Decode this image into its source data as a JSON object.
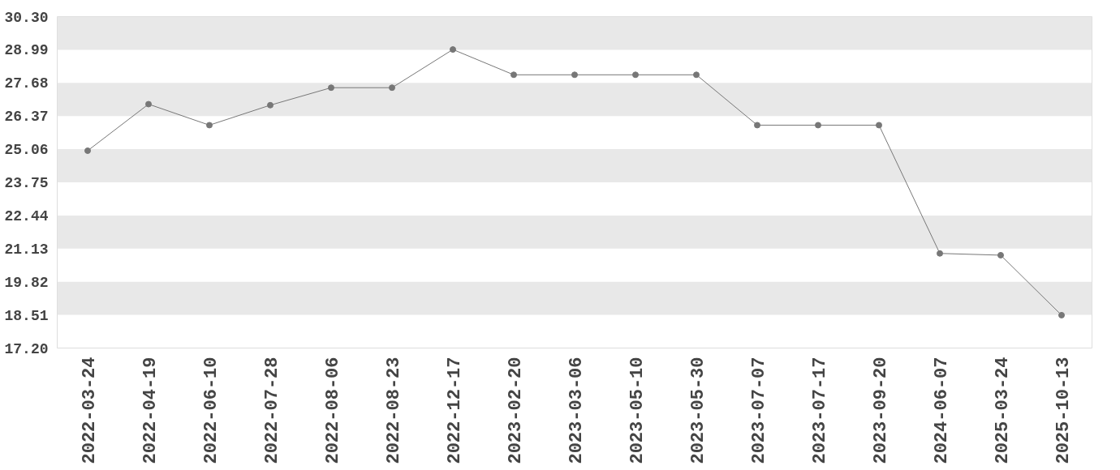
{
  "chart_data": {
    "type": "line",
    "categories": [
      "2022-03-24",
      "2022-04-19",
      "2022-06-10",
      "2022-07-28",
      "2022-08-06",
      "2022-08-23",
      "2022-12-17",
      "2023-02-20",
      "2023-03-06",
      "2023-05-10",
      "2023-05-30",
      "2023-07-07",
      "2023-07-17",
      "2023-09-20",
      "2024-06-07",
      "2025-03-24",
      "2025-10-13"
    ],
    "series": [
      {
        "color": "#777777",
        "values": [
          25.0,
          26.84,
          26.01,
          26.8,
          27.49,
          27.49,
          29.0,
          28.0,
          28.0,
          28.0,
          28.0,
          26.01,
          26.01,
          26.01,
          20.94,
          20.87,
          18.5
        ]
      }
    ],
    "ylim": [
      17.2,
      30.3
    ],
    "yticks": [
      {
        "value": 17.2,
        "label": "17.20"
      },
      {
        "value": 18.51,
        "label": "18.51"
      },
      {
        "value": 19.82,
        "label": "19.82"
      },
      {
        "value": 21.13,
        "label": "21.13"
      },
      {
        "value": 22.44,
        "label": "22.44"
      },
      {
        "value": 23.75,
        "label": "23.75"
      },
      {
        "value": 25.06,
        "label": "25.06"
      },
      {
        "value": 26.37,
        "label": "26.37"
      },
      {
        "value": 27.68,
        "label": "27.68"
      },
      {
        "value": 28.99,
        "label": "28.99"
      },
      {
        "value": 30.3,
        "label": "30.30"
      }
    ],
    "bands": [
      {
        "axis": "y",
        "from": 18.51,
        "to": 19.82,
        "color": "#e8e8e8"
      },
      {
        "axis": "y",
        "from": 21.13,
        "to": 22.44,
        "color": "#e8e8e8"
      },
      {
        "axis": "y",
        "from": 23.75,
        "to": 25.06,
        "color": "#e8e8e8"
      },
      {
        "axis": "y",
        "from": 26.37,
        "to": 27.68,
        "color": "#e8e8e8"
      },
      {
        "axis": "y",
        "from": 28.99,
        "to": 30.3,
        "color": "#e8e8e8"
      }
    ],
    "marker": "circle",
    "line_style": "solid"
  }
}
